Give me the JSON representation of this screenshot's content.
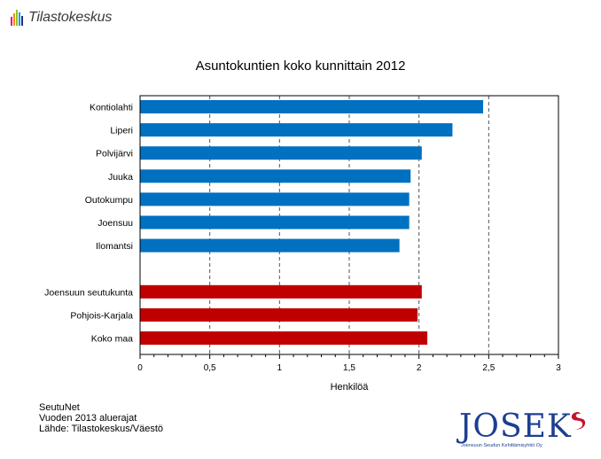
{
  "header": {
    "logo_text": "Tilastokeskus"
  },
  "chart_data": {
    "type": "bar",
    "orientation": "horizontal",
    "title": "Asuntokuntien koko kunnittain 2012",
    "xlabel": "Henkilöä",
    "ylabel": "",
    "xlim": [
      0,
      3
    ],
    "ticks": [
      "0",
      "0,5",
      "1",
      "1,5",
      "2",
      "2,5",
      "3"
    ],
    "tick_values": [
      0,
      0.5,
      1,
      1.5,
      2,
      2.5,
      3
    ],
    "grid": "dashed vertical",
    "categories": [
      "Kontiolahti",
      "Liperi",
      "Polvijärvi",
      "Juuka",
      "Outokumpu",
      "Joensuu",
      "Ilomantsi",
      "Joensuun seutukunta",
      "Pohjois-Karjala",
      "Koko maa"
    ],
    "values": [
      2.46,
      2.24,
      2.02,
      1.94,
      1.93,
      1.93,
      1.86,
      2.02,
      1.99,
      2.06
    ],
    "group": [
      "kunta",
      "kunta",
      "kunta",
      "kunta",
      "kunta",
      "kunta",
      "kunta",
      "alue",
      "alue",
      "alue"
    ],
    "colors": {
      "kunta": "#0070c0",
      "alue": "#c00000"
    }
  },
  "footer": {
    "lines": [
      "SeutuNet",
      "Vuoden 2013 aluerajat",
      "Lähde: Tilastokeskus/Väestö"
    ]
  },
  "josek_logo": {
    "word": "JOSEK",
    "subtitle": "Joensuun Seudun Kehittämisyhtiö Oy"
  }
}
